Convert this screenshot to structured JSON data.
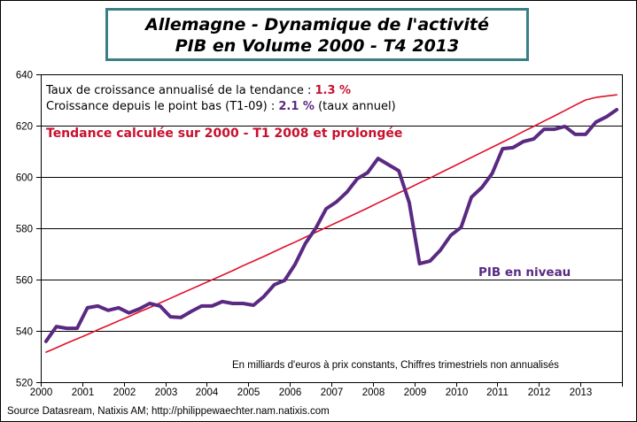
{
  "title": {
    "line1": "Allemagne - Dynamique de l'activité",
    "line2": "PIB en Volume 2000 - T4 2013"
  },
  "annotations": {
    "trend_rate_label": "Taux de croissance annualisé de la tendance : ",
    "trend_rate_value": "1.3 %",
    "since_low_label": "Croissance depuis le point bas (T1-09) : ",
    "since_low_value": "2.1 %",
    "since_low_suffix": " (taux annuel)",
    "trend_note": "Tendance calculée sur 2000 - T1 2008 et prolongée",
    "series_label": "PIB en niveau",
    "units_note": "En milliards d'euros à prix constants, Chiffres trimestriels non annualisés"
  },
  "source": "Source Datasream, Natixis AM;  http://philippewaechter.nam.natixis.com",
  "colors": {
    "pib": "#5a2a82",
    "trend": "#e0102a",
    "title_border": "#3a7f86"
  },
  "chart_data": {
    "type": "line",
    "title": "Allemagne - Dynamique de l'activité / PIB en Volume 2000 - T4 2013",
    "xlabel": "",
    "ylabel": "",
    "ylim": [
      520,
      640
    ],
    "xlim": [
      2000,
      2014
    ],
    "y_ticks": [
      "520",
      "540",
      "560",
      "580",
      "600",
      "620",
      "640"
    ],
    "x_ticks": [
      "2000",
      "2001",
      "2002",
      "2003",
      "2004",
      "2005",
      "2006",
      "2007",
      "2008",
      "2009",
      "2010",
      "2011",
      "2012",
      "2013"
    ],
    "grid": "horizontal",
    "x_quarters_start": "2000Q1",
    "series": [
      {
        "name": "PIB en niveau",
        "values": [
          535.9,
          541.7,
          541.0,
          541.0,
          549.0,
          549.7,
          548.0,
          549.0,
          547.0,
          548.6,
          550.7,
          549.7,
          545.5,
          545.2,
          547.6,
          549.7,
          549.7,
          551.4,
          550.7,
          550.7,
          550.0,
          553.4,
          558.0,
          559.7,
          565.9,
          574.1,
          580.0,
          587.6,
          590.3,
          594.1,
          599.3,
          601.7,
          607.2,
          604.8,
          602.4,
          590.0,
          566.2,
          567.2,
          571.4,
          577.2,
          580.3,
          592.1,
          595.9,
          601.4,
          611.0,
          611.4,
          613.8,
          614.8,
          618.6,
          618.6,
          619.7,
          616.6,
          616.6,
          621.4,
          623.4,
          626.2
        ]
      },
      {
        "name": "Tendance",
        "values": [
          531.7,
          533.4,
          535.2,
          536.9,
          538.6,
          540.4,
          542.1,
          543.9,
          545.6,
          547.4,
          549.1,
          550.9,
          552.7,
          554.5,
          556.3,
          558.1,
          559.9,
          561.7,
          563.5,
          565.4,
          567.2,
          569.0,
          570.9,
          572.8,
          574.6,
          576.5,
          578.4,
          580.3,
          582.2,
          584.1,
          586.0,
          587.9,
          589.9,
          591.8,
          593.8,
          595.7,
          597.7,
          599.6,
          601.6,
          603.6,
          605.6,
          607.6,
          609.6,
          611.6,
          613.6,
          615.6,
          617.7,
          619.7,
          621.8,
          623.8,
          625.9,
          628.0,
          630.0,
          631.0,
          631.5,
          632.0
        ]
      }
    ]
  }
}
